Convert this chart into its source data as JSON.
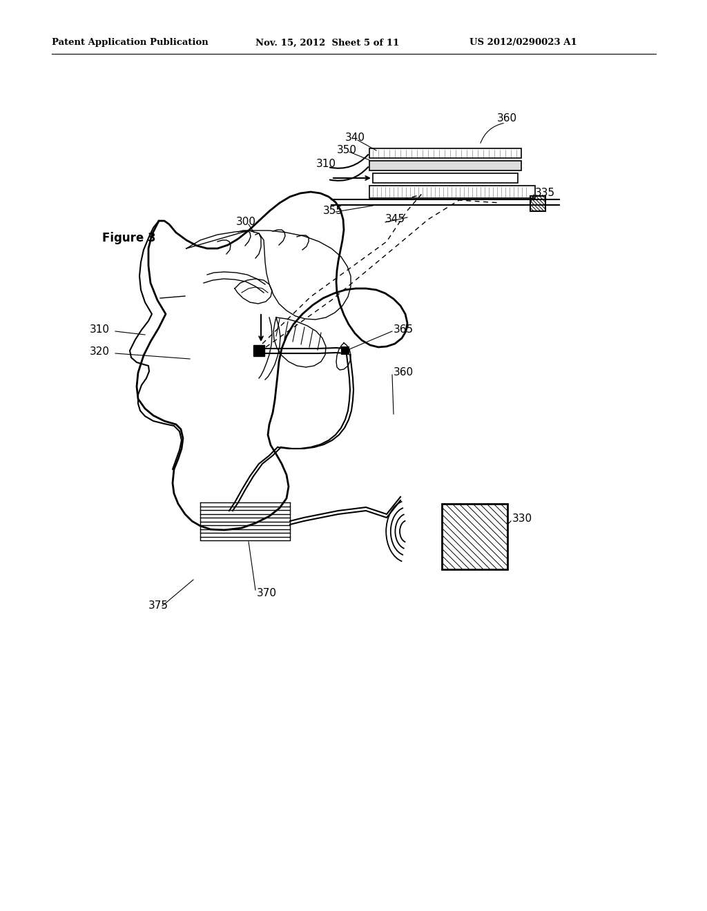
{
  "title_left": "Patent Application Publication",
  "title_mid": "Nov. 15, 2012  Sheet 5 of 11",
  "title_right": "US 2012/0290023 A1",
  "figure_label": "Figure 3",
  "bg_color": "#ffffff",
  "line_color": "#000000"
}
